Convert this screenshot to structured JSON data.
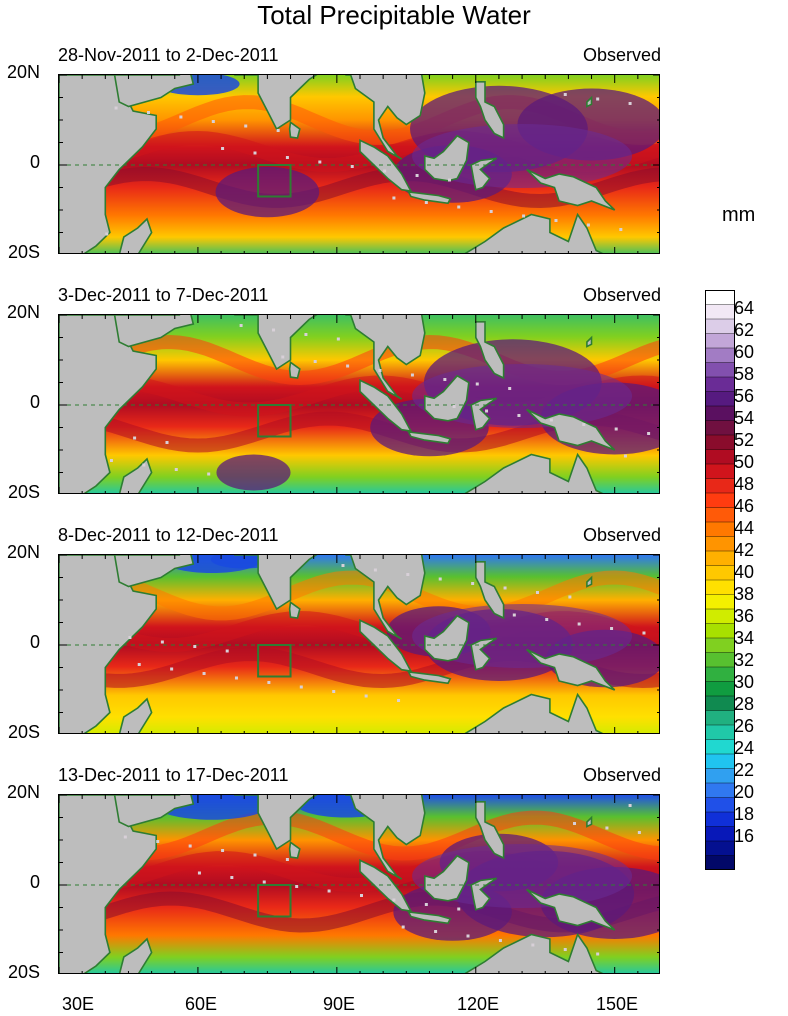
{
  "title": "Total Precipitable Water",
  "units": "mm",
  "panels": [
    {
      "date_range": "28-Nov-2011 to 2-Dec-2011",
      "label": "Observed"
    },
    {
      "date_range": "3-Dec-2011 to 7-Dec-2011",
      "label": "Observed"
    },
    {
      "date_range": "8-Dec-2011 to 12-Dec-2011",
      "label": "Observed"
    },
    {
      "date_range": "13-Dec-2011 to 17-Dec-2011",
      "label": "Observed"
    }
  ],
  "lat_labels": {
    "north": "20N",
    "equator": "0",
    "south": "20S"
  },
  "lon_labels": [
    "30E",
    "60E",
    "90E",
    "120E",
    "150E"
  ],
  "colorbar_labels": [
    "64",
    "62",
    "60",
    "58",
    "56",
    "54",
    "52",
    "50",
    "48",
    "46",
    "44",
    "42",
    "40",
    "38",
    "36",
    "34",
    "32",
    "30",
    "28",
    "26",
    "24",
    "22",
    "20",
    "18",
    "16"
  ],
  "colors": {
    "land": "#bdbdbd",
    "coast": "#2e7d32",
    "very_moist": "#5c1a7a",
    "moist": "#d01030",
    "mid": "#ff6a00",
    "dryish": "#f5d000",
    "dry": "#40c060",
    "very_dry": "#1a4adf"
  }
}
